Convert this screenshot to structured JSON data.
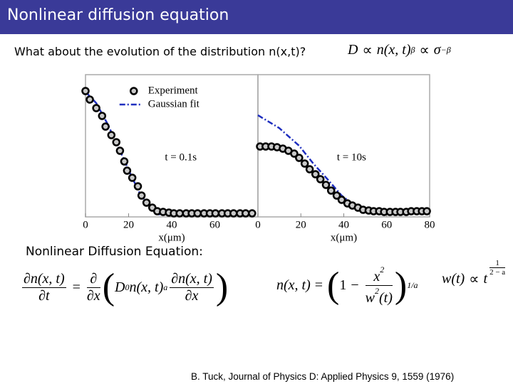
{
  "slide_title": "Nonlinear diffusion equation",
  "question": "What about the evolution of the distribution n(x,t)?",
  "proportionality": {
    "lhs": "D",
    "rel1": "∝",
    "mid": "n(x, t)",
    "mid_power": "β",
    "rel2": "∝",
    "rhs": "σ",
    "rhs_power": "−β"
  },
  "section_label": "Nonlinear Diffusion Equation:",
  "pde": {
    "lhs_num": "∂n(x, t)",
    "lhs_den": "∂t",
    "relation": "=",
    "op_num": "∂",
    "op_den": "∂x",
    "coef": "D",
    "coef_sub": "0",
    "inner": "n(x, t)",
    "power": "a",
    "grad_num": "∂n(x, t)",
    "grad_den": "∂x"
  },
  "solution": {
    "lhs": "n(x, t)",
    "relation": "=",
    "one": "1",
    "minus": "−",
    "num": "x",
    "num_power": "2",
    "den": "w",
    "den_power": "2",
    "den_arg": "(t)",
    "power": "1/a"
  },
  "width_law": {
    "lhs": "w(t)",
    "relation": "∝",
    "base": "t",
    "power_num": "1",
    "power_den": "2 − a"
  },
  "citation": "B. Tuck, Journal of Physics D: Applied Physics 9, 1559 (1976)",
  "chart_data": [
    {
      "type": "line",
      "annotation": "t = 0.1s",
      "x_label": "x(μm)",
      "legend": "upper right",
      "xlim": [
        0,
        80
      ],
      "xticks": [
        0,
        20,
        40,
        60
      ],
      "ylim": [
        0,
        1
      ],
      "series": [
        {
          "name": "Experiment",
          "style": "points",
          "color": "#000000",
          "x": [
            0,
            2,
            5,
            7.7,
            9.3,
            12,
            14.3,
            16,
            18,
            19.3,
            21.7,
            24.3,
            26,
            28.3,
            31,
            33.3,
            36,
            38.7,
            41,
            43.7,
            46.7,
            49.3,
            52,
            55,
            57.7,
            60.3,
            63.3,
            66,
            68.7,
            71.7,
            74.3,
            77.3
          ],
          "values": [
            0.885,
            0.825,
            0.765,
            0.71,
            0.635,
            0.575,
            0.525,
            0.465,
            0.39,
            0.325,
            0.275,
            0.215,
            0.15,
            0.1,
            0.065,
            0.04,
            0.035,
            0.03,
            0.025,
            0.025,
            0.025,
            0.025,
            0.025,
            0.025,
            0.025,
            0.025,
            0.025,
            0.025,
            0.025,
            0.025,
            0.025,
            0.025
          ]
        },
        {
          "name": "Gaussian fit",
          "style": "dash-dot",
          "color": "#1f2fbf",
          "x": [
            0,
            5,
            10,
            15,
            20,
            25,
            30,
            35
          ],
          "values": [
            0.88,
            0.8,
            0.66,
            0.5,
            0.33,
            0.17,
            0.06,
            0.01
          ]
        }
      ]
    },
    {
      "type": "line",
      "annotation": "t = 10s",
      "x_label": "x(μm)",
      "xlim": [
        0,
        80
      ],
      "xticks": [
        0,
        20,
        40,
        60,
        80
      ],
      "ylim": [
        0,
        1
      ],
      "series": [
        {
          "style": "points",
          "color": "#000000",
          "x": [
            1,
            3.6,
            6.3,
            8.9,
            11.6,
            14.2,
            16.9,
            19.2,
            21.8,
            24.1,
            26.8,
            29.1,
            31.7,
            34.1,
            36.7,
            39,
            41.7,
            44,
            46.6,
            49,
            51.6,
            53.9,
            56.5,
            58.8,
            61.5,
            64.1,
            66.4,
            69.1,
            71.4,
            74,
            76.4,
            78.7
          ],
          "values": [
            0.495,
            0.495,
            0.495,
            0.49,
            0.48,
            0.465,
            0.445,
            0.415,
            0.375,
            0.335,
            0.3,
            0.265,
            0.225,
            0.185,
            0.15,
            0.12,
            0.095,
            0.08,
            0.065,
            0.05,
            0.045,
            0.04,
            0.04,
            0.035,
            0.035,
            0.035,
            0.035,
            0.035,
            0.04,
            0.04,
            0.04,
            0.04
          ]
        },
        {
          "style": "dash-dot",
          "color": "#1f2fbf",
          "x": [
            0,
            9.9,
            19.2,
            25.8,
            32.4,
            39,
            45.6
          ],
          "values": [
            0.715,
            0.625,
            0.5,
            0.375,
            0.265,
            0.15,
            0.075
          ]
        }
      ]
    }
  ]
}
